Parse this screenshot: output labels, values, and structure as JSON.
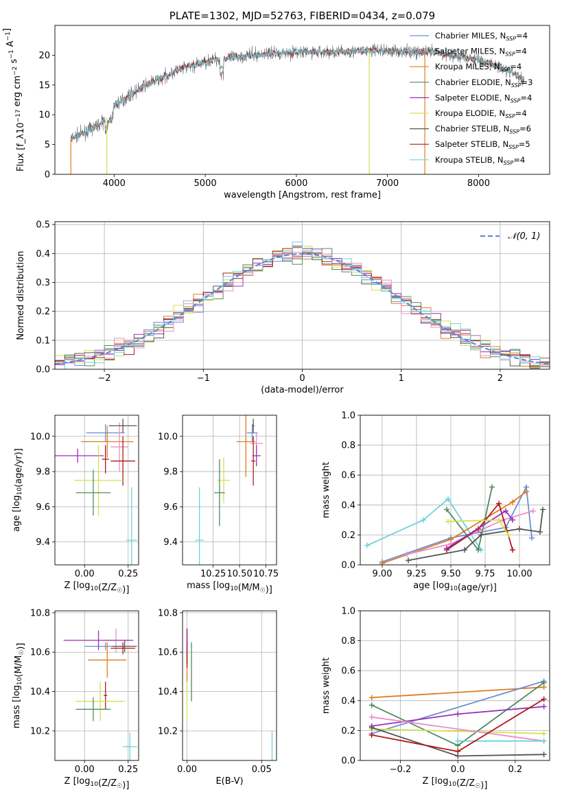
{
  "chart_data": [
    {
      "id": "spectrum",
      "type": "line",
      "title": "PLATE=1302, MJD=52763, FIBERID=0434, z=0.079",
      "xlabel": "wavelength [Angstrom, rest frame]",
      "ylabel": "Flux [f_λ10^-17 erg cm^-2 s^-1 A^-1]",
      "xlim": [
        3350,
        8780
      ],
      "ylim": [
        0,
        25
      ],
      "xticks": [
        "4000",
        "5000",
        "6000",
        "7000",
        "8000"
      ],
      "yticks": [
        "0",
        "5",
        "10",
        "15",
        "20"
      ],
      "grid": false,
      "legend_position": "right",
      "legend": [
        {
          "base": "Chabrier MILES, N",
          "sub": "SSP",
          "tail": "=4",
          "color": "#6a8fd6"
        },
        {
          "base": "Salpeter MILES, N",
          "sub": "SSP",
          "tail": "=4",
          "color": "#8f8fb8"
        },
        {
          "base": "Kroupa MILES, N",
          "sub": "SSP",
          "tail": "=4",
          "color": "#e07b20"
        },
        {
          "base": "Chabrier ELODIE, N",
          "sub": "SSP",
          "tail": "=3",
          "color": "#4f8a5e"
        },
        {
          "base": "Salpeter ELODIE, N",
          "sub": "SSP",
          "tail": "=4",
          "color": "#9a2fb4"
        },
        {
          "base": "Kroupa ELODIE, N",
          "sub": "SSP",
          "tail": "=4",
          "color": "#d6de50"
        },
        {
          "base": "Chabrier STELIB, N",
          "sub": "SSP",
          "tail": "=6",
          "color": "#555555"
        },
        {
          "base": "Salpeter STELIB, N",
          "sub": "SSP",
          "tail": "=5",
          "color": "#b01818"
        },
        {
          "base": "Kroupa STELIB, N",
          "sub": "SSP",
          "tail": "=4",
          "color": "#6fd0dc"
        }
      ],
      "continuum": [
        [
          3520,
          6
        ],
        [
          3700,
          7.2
        ],
        [
          3900,
          9.0
        ],
        [
          4000,
          11.6
        ],
        [
          4100,
          12.5
        ],
        [
          4200,
          13.6
        ],
        [
          4350,
          15.0
        ],
        [
          4500,
          16.0
        ],
        [
          4700,
          17.5
        ],
        [
          4900,
          18.4
        ],
        [
          5100,
          19.3
        ],
        [
          5300,
          19.6
        ],
        [
          5500,
          20.0
        ],
        [
          5700,
          20.3
        ],
        [
          6000,
          20.5
        ],
        [
          6300,
          20.5
        ],
        [
          6600,
          20.6
        ],
        [
          6900,
          20.8
        ],
        [
          7200,
          20.6
        ],
        [
          7500,
          20.5
        ],
        [
          7800,
          19.8
        ],
        [
          8100,
          18.8
        ],
        [
          8350,
          17.3
        ],
        [
          8500,
          15.7
        ]
      ],
      "dropouts": [
        {
          "x": 3525,
          "color": "#e07b20"
        },
        {
          "x": 3920,
          "color": "#d6de50"
        },
        {
          "x": 6800,
          "color": "#d6de50"
        },
        {
          "x": 7410,
          "color": "#e07b20"
        }
      ]
    },
    {
      "id": "residuals",
      "type": "histogram",
      "xlabel": "(data-model)/error",
      "ylabel": "Normed distribution",
      "xlim": [
        -2.5,
        2.5
      ],
      "ylim": [
        0,
        0.51
      ],
      "xticks": [
        "−2",
        "−1",
        "0",
        "1",
        "2"
      ],
      "yticks": [
        "0.0",
        "0.1",
        "0.2",
        "0.3",
        "0.4",
        "0.5"
      ],
      "grid": true,
      "legend": [
        {
          "label": "𝒩(0, 1)",
          "color": "#5b8bd6",
          "style": "dashed"
        }
      ],
      "bin_width": 0.1,
      "series_colors": [
        "#6a8fd6",
        "#e07b20",
        "#4f8a5e",
        "#9a2fb4",
        "#d6de50",
        "#555555",
        "#b01818",
        "#e98fc4",
        "#6fd0dc"
      ]
    },
    {
      "id": "age-vs-Z",
      "type": "errorbar",
      "xlabel": "Z [log10(Z/Z☉)]",
      "ylabel": "age  [log10(age/yr)]",
      "xlim": [
        -0.17,
        0.31
      ],
      "ylim": [
        9.27,
        10.12
      ],
      "xticks": [
        "0.00",
        "0.25"
      ],
      "yticks": [
        "9.4",
        "9.6",
        "9.8",
        "10.0"
      ],
      "grid": true,
      "points": [
        {
          "x": 0.12,
          "y": 10.02,
          "xe": 0.11,
          "ye": 0.05,
          "color": "#6a8fd6"
        },
        {
          "x": 0.13,
          "y": 9.97,
          "xe": 0.15,
          "ye": 0.09,
          "color": "#e07b20"
        },
        {
          "x": 0.2,
          "y": 9.94,
          "xe": 0.05,
          "ye": 0.14,
          "color": "#e98fc4"
        },
        {
          "x": 0.22,
          "y": 10.06,
          "xe": 0.08,
          "ye": 0.04,
          "color": "#555555"
        },
        {
          "x": 0.22,
          "y": 9.86,
          "xe": 0.07,
          "ye": 0.14,
          "color": "#b01818"
        },
        {
          "x": 0.12,
          "y": 9.87,
          "xe": 0.02,
          "ye": 0.08,
          "color": "#b01818"
        },
        {
          "x": -0.04,
          "y": 9.89,
          "xe": 0.15,
          "ye": 0.04,
          "color": "#9a2fb4"
        },
        {
          "x": 0.08,
          "y": 9.75,
          "xe": 0.14,
          "ye": 0.2,
          "color": "#d6de50"
        },
        {
          "x": 0.05,
          "y": 9.68,
          "xe": 0.1,
          "ye": 0.13,
          "color": "#4f8a5e"
        },
        {
          "x": 0.27,
          "y": 9.41,
          "xe": 0.03,
          "ye": 0.3,
          "color": "#6fd0dc"
        }
      ]
    },
    {
      "id": "age-vs-mass",
      "type": "errorbar",
      "xlabel": "mass [log10(M/M☉)]",
      "ylabel": "",
      "xlim": [
        9.96,
        10.85
      ],
      "ylim": [
        9.27,
        10.12
      ],
      "xticks": [
        "10.25",
        "10.50",
        "10.75"
      ],
      "yticks": [
        "9.4",
        "9.6",
        "9.8",
        "10.0"
      ],
      "grid": true,
      "points": [
        {
          "x": 10.62,
          "y": 10.02,
          "xe": 0.05,
          "ye": 0.05,
          "color": "#6a8fd6"
        },
        {
          "x": 10.56,
          "y": 9.97,
          "xe": 0.09,
          "ye": 0.2,
          "color": "#e07b20"
        },
        {
          "x": 10.66,
          "y": 9.96,
          "xe": 0.06,
          "ye": 0.06,
          "color": "#e98fc4"
        },
        {
          "x": 10.63,
          "y": 10.06,
          "xe": 0.01,
          "ye": 0.04,
          "color": "#555555"
        },
        {
          "x": 10.63,
          "y": 9.86,
          "xe": 0.02,
          "ye": 0.14,
          "color": "#b01818"
        },
        {
          "x": 10.66,
          "y": 9.89,
          "xe": 0.04,
          "ye": 0.06,
          "color": "#9a2fb4"
        },
        {
          "x": 10.35,
          "y": 9.75,
          "xe": 0.06,
          "ye": 0.13,
          "color": "#d6de50"
        },
        {
          "x": 10.31,
          "y": 9.68,
          "xe": 0.05,
          "ye": 0.19,
          "color": "#4f8a5e"
        },
        {
          "x": 10.12,
          "y": 9.41,
          "xe": 0.04,
          "ye": 0.3,
          "color": "#6fd0dc"
        }
      ]
    },
    {
      "id": "weight-vs-age",
      "type": "line",
      "xlabel": "age  [log10(age/yr)]",
      "ylabel": "mass weight",
      "xlim": [
        8.84,
        10.22
      ],
      "ylim": [
        0,
        1
      ],
      "xticks": [
        "9.00",
        "9.25",
        "9.50",
        "9.75",
        "10.00"
      ],
      "yticks": [
        "0.0",
        "0.2",
        "0.4",
        "0.6",
        "0.8",
        "1.0"
      ],
      "grid": true,
      "series": [
        {
          "color": "#6fd0dc",
          "points": [
            [
              8.89,
              0.13
            ],
            [
              9.3,
              0.3
            ],
            [
              9.48,
              0.44
            ],
            [
              9.72,
              0.1
            ]
          ]
        },
        {
          "color": "#6a8fd6",
          "points": [
            [
              9.0,
              0.02
            ],
            [
              9.5,
              0.18
            ],
            [
              9.9,
              0.25
            ],
            [
              10.05,
              0.52
            ],
            [
              10.09,
              0.18
            ]
          ]
        },
        {
          "color": "#e07b20",
          "points": [
            [
              9.0,
              0.01
            ],
            [
              9.5,
              0.17
            ],
            [
              9.95,
              0.42
            ],
            [
              10.05,
              0.49
            ]
          ]
        },
        {
          "color": "#e98fc4",
          "points": [
            [
              9.18,
              0.07
            ],
            [
              9.5,
              0.14
            ],
            [
              9.88,
              0.3
            ],
            [
              10.1,
              0.36
            ]
          ]
        },
        {
          "color": "#4f8a5e",
          "points": [
            [
              9.47,
              0.37
            ],
            [
              9.7,
              0.1
            ],
            [
              9.8,
              0.52
            ]
          ]
        },
        {
          "color": "#555555",
          "points": [
            [
              9.19,
              0.03
            ],
            [
              9.6,
              0.1
            ],
            [
              9.72,
              0.2
            ],
            [
              10.0,
              0.24
            ],
            [
              10.15,
              0.22
            ],
            [
              10.17,
              0.37
            ]
          ]
        },
        {
          "color": "#b01818",
          "points": [
            [
              9.47,
              0.1
            ],
            [
              9.7,
              0.24
            ],
            [
              9.85,
              0.41
            ],
            [
              9.95,
              0.1
            ]
          ]
        },
        {
          "color": "#9a2fb4",
          "points": [
            [
              9.47,
              0.11
            ],
            [
              9.9,
              0.36
            ],
            [
              9.95,
              0.3
            ]
          ]
        },
        {
          "color": "#d6de50",
          "points": [
            [
              9.48,
              0.29
            ],
            [
              9.85,
              0.3
            ],
            [
              9.92,
              0.2
            ]
          ]
        }
      ]
    },
    {
      "id": "mass-vs-Z",
      "type": "errorbar",
      "xlabel": "Z [log10(Z/Z☉)]",
      "ylabel": "mass [log10(M/M☉)]",
      "xlim": [
        -0.17,
        0.31
      ],
      "ylim": [
        10.05,
        10.81
      ],
      "xticks": [
        "0.00",
        "0.25"
      ],
      "yticks": [
        "10.2",
        "10.4",
        "10.6",
        "10.8"
      ],
      "grid": true,
      "points": [
        {
          "x": 0.12,
          "y": 10.63,
          "xe": 0.12,
          "ye": 0.02,
          "color": "#6a8fd6"
        },
        {
          "x": 0.13,
          "y": 10.56,
          "xe": 0.11,
          "ye": 0.09,
          "color": "#e07b20"
        },
        {
          "x": 0.18,
          "y": 10.66,
          "xe": 0.07,
          "ye": 0.06,
          "color": "#e98fc4"
        },
        {
          "x": 0.23,
          "y": 10.63,
          "xe": 0.07,
          "ye": 0.03,
          "color": "#555555"
        },
        {
          "x": 0.22,
          "y": 10.62,
          "xe": 0.07,
          "ye": 0.03,
          "color": "#b01818"
        },
        {
          "x": 0.12,
          "y": 10.38,
          "xe": 0.01,
          "ye": 0.07,
          "color": "#b01818"
        },
        {
          "x": 0.08,
          "y": 10.66,
          "xe": 0.2,
          "ye": 0.05,
          "color": "#9a2fb4"
        },
        {
          "x": 0.09,
          "y": 10.35,
          "xe": 0.14,
          "ye": 0.1,
          "color": "#d6de50"
        },
        {
          "x": 0.05,
          "y": 10.31,
          "xe": 0.1,
          "ye": 0.06,
          "color": "#4f8a5e"
        },
        {
          "x": 0.26,
          "y": 10.12,
          "xe": 0.04,
          "ye": 0.07,
          "color": "#6fd0dc"
        }
      ]
    },
    {
      "id": "mass-vs-ebv",
      "type": "errorbar",
      "xlabel": "E(B-V)",
      "ylabel": "",
      "xlim": [
        -0.003,
        0.06
      ],
      "ylim": [
        10.05,
        10.81
      ],
      "xticks": [
        "0.00",
        "0.05"
      ],
      "yticks": [
        "10.2",
        "10.4",
        "10.6",
        "10.8"
      ],
      "grid": true,
      "points": [
        {
          "x": 0.0,
          "y": 10.62,
          "xe": 0.0,
          "ye": 0.06,
          "color": "#6a8fd6"
        },
        {
          "x": 0.0,
          "y": 10.55,
          "xe": 0.0,
          "ye": 0.1,
          "color": "#e07b20"
        },
        {
          "x": 0.0,
          "y": 10.66,
          "xe": 0.0,
          "ye": 0.06,
          "color": "#e98fc4"
        },
        {
          "x": 0.0,
          "y": 10.6,
          "xe": 0.0,
          "ye": 0.06,
          "color": "#555555"
        },
        {
          "x": 0.0,
          "y": 10.62,
          "xe": 0.0,
          "ye": 0.1,
          "color": "#b01818"
        },
        {
          "x": 0.0,
          "y": 10.66,
          "xe": 0.0,
          "ye": 0.05,
          "color": "#9a2fb4"
        },
        {
          "x": 0.0,
          "y": 10.35,
          "xe": 0.0,
          "ye": 0.1,
          "color": "#d6de50"
        },
        {
          "x": 0.003,
          "y": 10.5,
          "xe": 0.0,
          "ye": 0.15,
          "color": "#4f8a5e"
        },
        {
          "x": 0.057,
          "y": 10.12,
          "xe": 0.0,
          "ye": 0.08,
          "color": "#6fd0dc"
        }
      ]
    },
    {
      "id": "weight-vs-Z",
      "type": "line",
      "xlabel": "Z [log10(Z/Z☉)]",
      "ylabel": "mass weight",
      "xlim": [
        -0.34,
        0.32
      ],
      "ylim": [
        0,
        1
      ],
      "xticks": [
        "−0.2",
        "0.0",
        "0.2"
      ],
      "yticks": [
        "0.0",
        "0.2",
        "0.4",
        "0.6",
        "0.8",
        "1.0"
      ],
      "grid": true,
      "series": [
        {
          "color": "#e07b20",
          "points": [
            [
              -0.3,
              0.42
            ],
            [
              0.3,
              0.49
            ]
          ]
        },
        {
          "color": "#6a8fd6",
          "points": [
            [
              -0.3,
              0.18
            ],
            [
              0.3,
              0.53
            ]
          ]
        },
        {
          "color": "#4f8a5e",
          "points": [
            [
              -0.3,
              0.37
            ],
            [
              0.0,
              0.1
            ],
            [
              0.3,
              0.52
            ]
          ]
        },
        {
          "color": "#9a2fb4",
          "points": [
            [
              -0.3,
              0.23
            ],
            [
              0.0,
              0.31
            ],
            [
              0.3,
              0.36
            ]
          ]
        },
        {
          "color": "#d6de50",
          "points": [
            [
              -0.3,
              0.21
            ],
            [
              0.3,
              0.18
            ]
          ]
        },
        {
          "color": "#e98fc4",
          "points": [
            [
              -0.3,
              0.29
            ],
            [
              0.3,
              0.13
            ]
          ]
        },
        {
          "color": "#6fd0dc",
          "points": [
            [
              0.0,
              0.13
            ],
            [
              0.3,
              0.13
            ]
          ]
        },
        {
          "color": "#555555",
          "points": [
            [
              -0.3,
              0.22
            ],
            [
              0.0,
              0.03
            ],
            [
              0.3,
              0.04
            ]
          ]
        },
        {
          "color": "#b01818",
          "points": [
            [
              -0.3,
              0.17
            ],
            [
              0.0,
              0.06
            ],
            [
              0.3,
              0.41
            ]
          ]
        }
      ]
    }
  ]
}
